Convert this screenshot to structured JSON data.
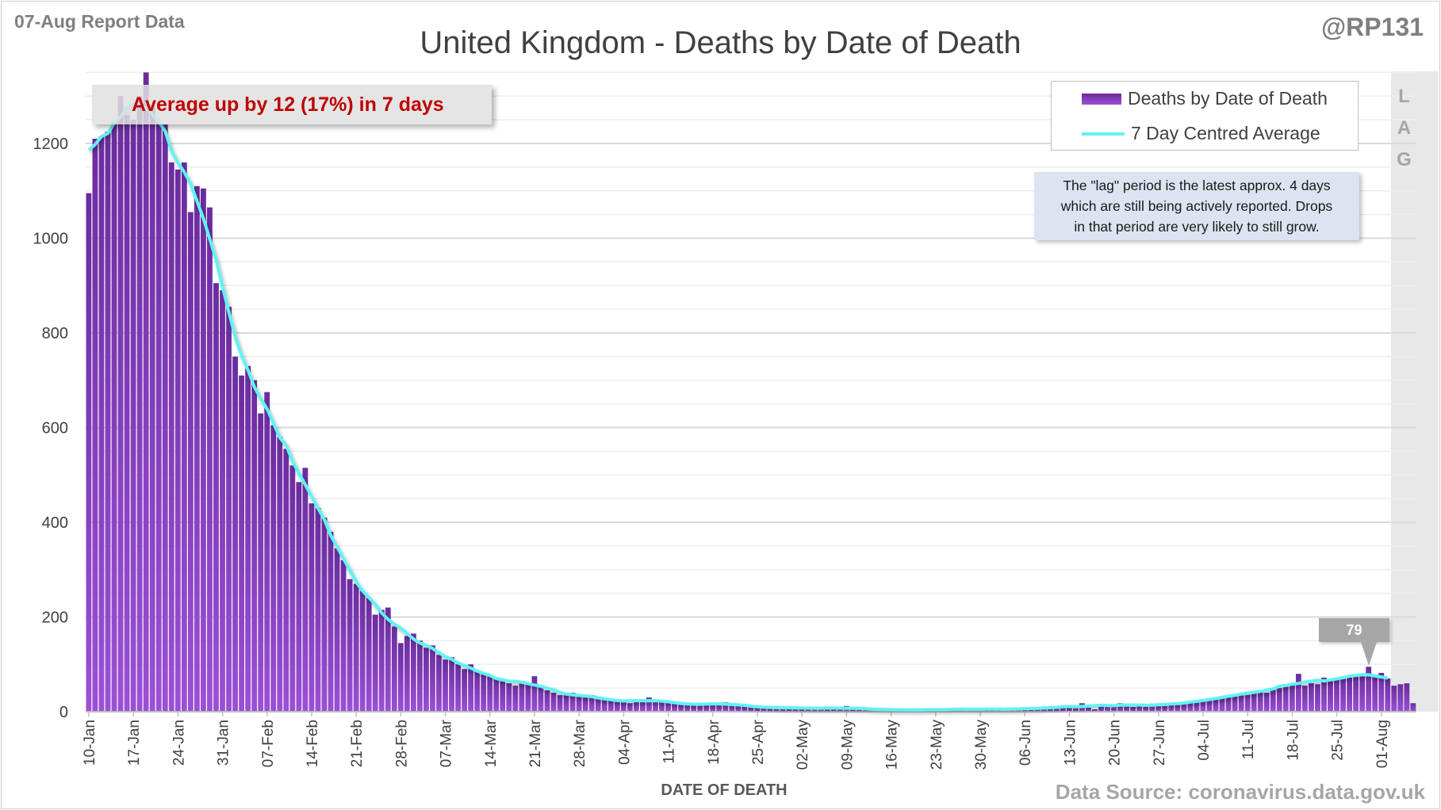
{
  "header": {
    "report_label": "07-Aug Report Data",
    "handle": "@RP131"
  },
  "annotation": "Average up by 12 (17%) in 7 days",
  "lag_letters": [
    "L",
    "A",
    "G"
  ],
  "info_box": {
    "lines": [
      "The \"lag\" period is the latest approx. 4 days",
      "which are still being actively reported.  Drops",
      "in that period are very likely to still grow."
    ]
  },
  "callout_value": "79",
  "footer": {
    "source": "Data Source: coronavirus.data.gov.uk"
  },
  "colors": {
    "bar_top": "#6a2c9e",
    "bar_bottom": "#9b50d6",
    "average_line": "#5ff3f5",
    "annotation_text": "#c00000",
    "lag_shade": "#e8e8e8"
  },
  "chart_data": {
    "type": "bar",
    "title": "United Kingdom - Deaths by Date of Death",
    "xlabel": "DATE OF DEATH",
    "ylabel": "",
    "ylim": [
      0,
      1350
    ],
    "yticks": [
      0,
      200,
      400,
      600,
      800,
      1000,
      1200
    ],
    "grid": true,
    "legend": {
      "placement": "top-right",
      "entries": [
        "Deaths by Date of Death",
        "7 Day Centred Average"
      ]
    },
    "start_date": "10-Jan",
    "lag_days": 4,
    "xtick_labels": [
      "10-Jan",
      "17-Jan",
      "24-Jan",
      "31-Jan",
      "07-Feb",
      "14-Feb",
      "21-Feb",
      "28-Feb",
      "07-Mar",
      "14-Mar",
      "21-Mar",
      "28-Mar",
      "04-Apr",
      "11-Apr",
      "18-Apr",
      "25-Apr",
      "02-May",
      "09-May",
      "16-May",
      "23-May",
      "30-May",
      "06-Jun",
      "13-Jun",
      "20-Jun",
      "27-Jun",
      "04-Jul",
      "11-Jul",
      "18-Jul",
      "25-Jul",
      "01-Aug"
    ],
    "series": [
      {
        "name": "Deaths by Date of Death",
        "values": [
          1095,
          1210,
          1215,
          1225,
          1245,
          1300,
          1260,
          1250,
          1300,
          1350,
          1280,
          1245,
          1240,
          1160,
          1145,
          1160,
          1055,
          1110,
          1105,
          1065,
          905,
          890,
          855,
          750,
          710,
          730,
          700,
          630,
          675,
          605,
          580,
          555,
          520,
          485,
          515,
          440,
          430,
          410,
          380,
          345,
          320,
          280,
          270,
          255,
          240,
          205,
          215,
          220,
          180,
          145,
          160,
          165,
          150,
          135,
          140,
          120,
          110,
          115,
          100,
          90,
          100,
          85,
          80,
          75,
          70,
          65,
          60,
          55,
          65,
          60,
          75,
          55,
          45,
          40,
          35,
          35,
          40,
          35,
          30,
          35,
          30,
          28,
          25,
          22,
          20,
          18,
          22,
          25,
          30,
          25,
          22,
          20,
          18,
          16,
          17,
          15,
          14,
          16,
          15,
          17,
          20,
          18,
          15,
          12,
          10,
          10,
          9,
          8,
          10,
          9,
          8,
          8,
          7,
          8,
          7,
          8,
          6,
          7,
          8,
          12,
          6,
          5,
          7,
          6,
          5,
          4,
          5,
          3,
          4,
          5,
          4,
          5,
          3,
          4,
          5,
          6,
          5,
          4,
          7,
          6,
          5,
          4,
          6,
          5,
          7,
          6,
          5,
          4,
          6,
          8,
          9,
          10,
          8,
          10,
          9,
          11,
          18,
          12,
          5,
          13,
          16,
          14,
          18,
          13,
          10,
          14,
          13,
          17,
          15,
          12,
          16,
          17,
          18,
          20,
          22,
          24,
          26,
          27,
          30,
          32,
          35,
          38,
          42,
          39,
          45,
          40,
          48,
          50,
          55,
          60,
          80,
          55,
          60,
          58,
          72,
          68,
          72,
          70,
          72,
          74,
          75,
          95,
          78,
          82,
          70,
          55,
          58,
          60,
          18
        ]
      },
      {
        "name": "7 Day Centred Average",
        "values": "computed as centred 7-day mean of daily deaths"
      }
    ]
  }
}
